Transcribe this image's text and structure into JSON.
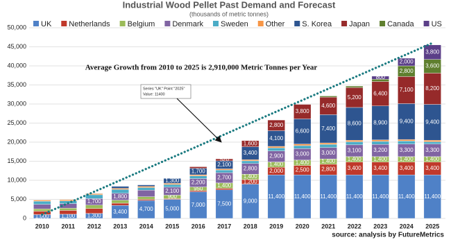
{
  "chart_data": {
    "type": "stacked-bar",
    "title": "Industrial Wood Pellet Past Demand and Forecast",
    "subtitle": "(thousands of metric tonnes)",
    "annotation": "Average Growth from 2010 to 2025 is 2,910,000 Metric Tonnes per Year",
    "tooltip": [
      "Series \"UK\" Point \"2025\"",
      "Value: 11400"
    ],
    "source": "source: analysis by FutureMetrics",
    "categories": [
      "2010",
      "2011",
      "2012",
      "2013",
      "2014",
      "2015",
      "2016",
      "2017",
      "2018",
      "2019",
      "2020",
      "2021",
      "2022",
      "2023",
      "2024",
      "2025"
    ],
    "ylim": [
      0,
      50000
    ],
    "yticks": [
      0,
      {
        "value": 5000,
        "label": "5,000"
      },
      {
        "value": 10000,
        "label": "10,000"
      },
      {
        "value": 15000,
        "label": "15,000"
      },
      {
        "value": 20000,
        "label": "20,000"
      },
      {
        "value": 25000,
        "label": "25,000"
      },
      {
        "value": 30000,
        "label": "30,000"
      },
      {
        "value": 35000,
        "label": "35,000"
      },
      {
        "value": 40000,
        "label": "40,000"
      },
      {
        "value": 45000,
        "label": "45,000"
      },
      {
        "value": 50000,
        "label": "50,000"
      }
    ],
    "grid": true,
    "trendline": {
      "color": "#1a7a80",
      "x": [
        "2010",
        "2025"
      ],
      "values": [
        1000,
        46000
      ]
    },
    "series": [
      {
        "name": "UK",
        "color": "#4f81c7",
        "values": [
          1000,
          1100,
          1300,
          3400,
          4700,
          5000,
          7000,
          7500,
          9000,
          11400,
          11400,
          11400,
          11400,
          11400,
          11400,
          11400
        ],
        "value_labels": [
          "1,000",
          "1,100",
          "1,300",
          "3,400",
          "4,700",
          "5,000",
          "7,000",
          "7,500",
          "9,000",
          "11,400",
          "11,400",
          "11,400",
          "11,400",
          "11,400",
          "11,400",
          "11,400"
        ]
      },
      {
        "name": "Netherlands",
        "color": "#c0392b",
        "values": [
          900,
          1000,
          1300,
          600,
          300,
          200,
          300,
          400,
          1200,
          2000,
          2500,
          2800,
          3400,
          3400,
          3400,
          3400
        ],
        "value_labels": [
          null,
          null,
          null,
          null,
          null,
          null,
          null,
          null,
          "1,200",
          "2,000",
          "2,500",
          "2,800",
          "3,400",
          "3,400",
          "3,400",
          "3,400"
        ]
      },
      {
        "name": "Belgium",
        "color": "#9bbb59",
        "values": [
          600,
          600,
          900,
          800,
          700,
          900,
          950,
          1400,
          1400,
          1400,
          1400,
          1400,
          1400,
          1400,
          1400,
          1400
        ],
        "value_labels": [
          null,
          null,
          null,
          null,
          null,
          "900",
          "950",
          "1,400",
          "1,400",
          "1,400",
          "1,400",
          "1,400",
          "1,400",
          "1,400",
          "1,400",
          "1,400"
        ]
      },
      {
        "name": "Denmark",
        "color": "#8064a2",
        "values": [
          1200,
          1200,
          1700,
          1800,
          1700,
          2100,
          2200,
          2700,
          2800,
          2900,
          3000,
          3000,
          3100,
          3200,
          3300,
          3300
        ],
        "value_labels": [
          null,
          null,
          "1,700",
          "1,800",
          null,
          "2,100",
          "2,200",
          "2,700",
          "2,800",
          "2,900",
          "3,000",
          "3,000",
          "3,100",
          "3,200",
          "3,300",
          "3,300"
        ]
      },
      {
        "name": "Sweden",
        "color": "#4bacc6",
        "values": [
          800,
          700,
          1000,
          1000,
          700,
          700,
          700,
          700,
          700,
          800,
          800,
          800,
          800,
          800,
          800,
          600
        ],
        "value_labels": [
          null,
          null,
          null,
          null,
          null,
          null,
          null,
          null,
          null,
          null,
          null,
          null,
          null,
          null,
          null,
          null
        ]
      },
      {
        "name": "Other",
        "color": "#f79646",
        "values": [
          300,
          300,
          300,
          300,
          300,
          300,
          300,
          300,
          300,
          400,
          400,
          400,
          400,
          400,
          400,
          400
        ],
        "value_labels": [
          null,
          null,
          null,
          null,
          null,
          null,
          null,
          null,
          null,
          null,
          null,
          null,
          null,
          null,
          null,
          null
        ]
      },
      {
        "name": "S. Korea",
        "color": "#2e5590",
        "values": [
          0,
          0,
          100,
          500,
          400,
          1300,
          1700,
          2100,
          3400,
          4100,
          6600,
          7400,
          8600,
          8900,
          9400,
          9400
        ],
        "value_labels": [
          null,
          null,
          null,
          null,
          null,
          "1,300",
          "1,700",
          "2,100",
          "3,400",
          "4,100",
          "6,600",
          "7,400",
          "8,600",
          "8,900",
          "9,400",
          "9,400"
        ]
      },
      {
        "name": "Japan",
        "color": "#962a2a",
        "values": [
          0,
          0,
          0,
          0,
          0,
          0,
          400,
          520,
          1600,
          2800,
          3800,
          4600,
          5200,
          6400,
          7100,
          8200
        ],
        "value_labels": [
          null,
          null,
          null,
          null,
          null,
          null,
          null,
          "520",
          "1,600",
          "2,800",
          "3,800",
          "4,600",
          "5,200",
          "6,400",
          "7,100",
          "8,200"
        ]
      },
      {
        "name": "Canada",
        "color": "#5f7f2e",
        "values": [
          0,
          0,
          0,
          0,
          0,
          0,
          0,
          0,
          0,
          0,
          0,
          300,
          400,
          600,
          2800,
          3600
        ],
        "value_labels": [
          null,
          null,
          null,
          null,
          null,
          null,
          null,
          null,
          null,
          null,
          null,
          null,
          null,
          null,
          "2,800",
          "3,600"
        ]
      },
      {
        "name": "US",
        "color": "#5b3f88",
        "values": [
          0,
          0,
          0,
          0,
          0,
          0,
          0,
          0,
          0,
          0,
          0,
          0,
          0,
          800,
          2000,
          3800
        ],
        "value_labels": [
          null,
          null,
          null,
          null,
          null,
          null,
          null,
          null,
          null,
          null,
          null,
          null,
          null,
          "800",
          "2,000",
          "3,800"
        ]
      }
    ]
  }
}
